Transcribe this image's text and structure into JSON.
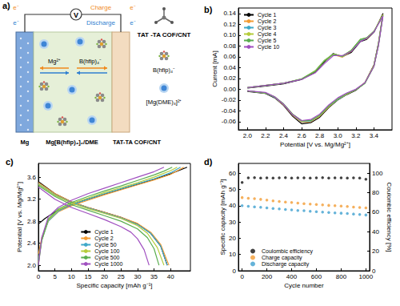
{
  "diagram": {
    "title": "a)",
    "charge": "Charge",
    "discharge": "Discharge",
    "electron": "e⁻",
    "voltmeter": "V",
    "ions": [
      "Mg²⁺",
      "B(hfip)₄⁻"
    ],
    "anode": "Mg",
    "electrolyte": "Mg[B(hfip)₄]₂/DME",
    "cathode": "TAT-TA COF/CNT",
    "key": [
      "TAT -TA COF/CNT",
      "B(hfip)₄⁻",
      "[Mg(DME)₃]²⁺"
    ]
  },
  "chart_data": [
    {
      "type": "line",
      "title": "b)",
      "x_label": "Potential [V vs. Mg/Mg²⁺]",
      "y_label": "Current [mA]",
      "xlim": [
        1.9,
        3.6
      ],
      "xticks": [
        {
          "value": 2.0,
          "label": "2.0"
        },
        2.2,
        2.4,
        2.6,
        2.8,
        {
          "value": 3.0,
          "label": "3.0"
        },
        3.2,
        3.4
      ],
      "ylim": [
        -0.075,
        0.15
      ],
      "yticks": [
        -0.06,
        -0.04,
        -0.02,
        {
          "value": 0,
          "label": "0.00"
        },
        0.02,
        0.04,
        0.06,
        0.08,
        {
          "value": 0.1,
          "label": "0.10"
        },
        0.12,
        0.14
      ],
      "grid": false,
      "legend": "upper left",
      "line_style": "solid",
      "x": [
        2.0,
        2.2,
        2.4,
        2.6,
        2.75,
        2.85,
        2.95,
        3.05,
        3.15,
        3.25,
        3.32,
        3.4,
        3.5,
        3.45,
        3.4,
        3.3,
        3.2,
        3.1,
        3.0,
        2.9,
        2.8,
        2.7,
        2.6,
        2.5,
        2.4,
        2.3,
        2.2,
        2.0
      ],
      "series": [
        {
          "name": "Cycle 1",
          "color": "#000000",
          "values": [
            0.002,
            0.006,
            0.01,
            0.018,
            0.032,
            0.05,
            0.066,
            0.06,
            0.068,
            0.088,
            0.092,
            0.105,
            0.14,
            0.085,
            0.045,
            0.012,
            -0.002,
            -0.01,
            -0.02,
            -0.034,
            -0.052,
            -0.062,
            -0.064,
            -0.05,
            -0.03,
            -0.016,
            -0.008,
            -0.004
          ]
        },
        {
          "name": "Cycle 2",
          "color": "#f39c34",
          "values": [
            0.003,
            0.007,
            0.011,
            0.019,
            0.033,
            0.052,
            0.064,
            0.059,
            0.07,
            0.09,
            0.093,
            0.106,
            0.138,
            0.083,
            0.044,
            0.012,
            -0.001,
            -0.009,
            -0.019,
            -0.033,
            -0.05,
            -0.06,
            -0.061,
            -0.048,
            -0.029,
            -0.015,
            -0.007,
            -0.003
          ]
        },
        {
          "name": "Cycle 3",
          "color": "#3fa9c9",
          "values": [
            0.003,
            0.007,
            0.011,
            0.019,
            0.034,
            0.053,
            0.065,
            0.06,
            0.071,
            0.091,
            0.094,
            0.106,
            0.137,
            0.082,
            0.043,
            0.011,
            -0.001,
            -0.009,
            -0.019,
            -0.032,
            -0.049,
            -0.059,
            -0.06,
            -0.047,
            -0.028,
            -0.015,
            -0.007,
            -0.003
          ]
        },
        {
          "name": "Cycle 4",
          "color": "#b5cc3a",
          "values": [
            0.003,
            0.007,
            0.011,
            0.019,
            0.034,
            0.053,
            0.065,
            0.061,
            0.072,
            0.092,
            0.095,
            0.107,
            0.137,
            0.082,
            0.043,
            0.011,
            -0.001,
            -0.009,
            -0.018,
            -0.032,
            -0.049,
            -0.058,
            -0.059,
            -0.046,
            -0.028,
            -0.014,
            -0.007,
            -0.003
          ]
        },
        {
          "name": "Cycle 5",
          "color": "#5aae4f",
          "values": [
            0.003,
            0.007,
            0.011,
            0.019,
            0.033,
            0.052,
            0.064,
            0.061,
            0.072,
            0.092,
            0.095,
            0.107,
            0.136,
            0.081,
            0.042,
            0.011,
            -0.001,
            -0.008,
            -0.018,
            -0.031,
            -0.048,
            -0.058,
            -0.058,
            -0.046,
            -0.027,
            -0.014,
            -0.007,
            -0.003
          ]
        },
        {
          "name": "Cycle 10",
          "color": "#a04fc0",
          "values": [
            0.003,
            0.007,
            0.011,
            0.018,
            0.03,
            0.047,
            0.062,
            0.062,
            0.07,
            0.088,
            0.094,
            0.106,
            0.135,
            0.08,
            0.042,
            0.012,
            0.0,
            -0.007,
            -0.016,
            -0.029,
            -0.046,
            -0.056,
            -0.058,
            -0.047,
            -0.028,
            -0.014,
            -0.006,
            -0.003
          ]
        }
      ]
    },
    {
      "type": "line",
      "title": "c)",
      "x_label": "Specific capacity [mAh g⁻¹]",
      "y_label": "Potential [V vs. Mg/Mg²⁺]",
      "xlim": [
        0,
        46
      ],
      "xticks": [
        0,
        5,
        10,
        15,
        20,
        25,
        30,
        35,
        40
      ],
      "ylim": [
        1.9,
        3.85
      ],
      "yticks": [
        {
          "value": 2.0,
          "label": "2.0"
        },
        2.4,
        2.8,
        3.2,
        3.6
      ],
      "grid": false,
      "legend": "lower center",
      "line_style": "solid",
      "series": [
        {
          "name": "Cycle 1",
          "color": "#000000",
          "x": [
            0,
            2,
            5,
            10,
            15,
            20,
            25,
            30,
            35,
            40,
            45,
            null,
            0,
            5,
            10,
            15,
            20,
            25,
            30,
            34,
            37,
            39
          ],
          "values": [
            2.75,
            2.85,
            2.97,
            3.1,
            3.2,
            3.29,
            3.38,
            3.47,
            3.56,
            3.66,
            3.78,
            null,
            3.52,
            3.3,
            3.15,
            3.05,
            2.96,
            2.87,
            2.75,
            2.58,
            2.35,
            2.0
          ]
        },
        {
          "name": "Cycle 2",
          "color": "#f39c34",
          "x": [
            0,
            1,
            3,
            6,
            10,
            15,
            20,
            25,
            30,
            35,
            40,
            44,
            null,
            0,
            5,
            10,
            15,
            20,
            25,
            30,
            34,
            37,
            39.5
          ],
          "values": [
            2.2,
            2.5,
            2.8,
            2.97,
            3.08,
            3.18,
            3.28,
            3.37,
            3.46,
            3.55,
            3.65,
            3.78,
            null,
            3.5,
            3.3,
            3.15,
            3.05,
            2.96,
            2.87,
            2.76,
            2.6,
            2.38,
            2.0
          ]
        },
        {
          "name": "Cycle 50",
          "color": "#3fa9c9",
          "x": [
            0,
            1,
            3,
            6,
            10,
            15,
            20,
            25,
            30,
            35,
            40,
            43,
            null,
            0,
            5,
            10,
            15,
            20,
            25,
            30,
            34,
            37,
            39
          ],
          "values": [
            2.1,
            2.45,
            2.8,
            2.98,
            3.1,
            3.2,
            3.3,
            3.39,
            3.48,
            3.57,
            3.68,
            3.78,
            null,
            3.48,
            3.28,
            3.14,
            3.04,
            2.95,
            2.86,
            2.74,
            2.58,
            2.35,
            2.0
          ]
        },
        {
          "name": "Cycle 100",
          "color": "#b5cc3a",
          "x": [
            0,
            1,
            3,
            6,
            10,
            15,
            20,
            25,
            30,
            35,
            40,
            42,
            null,
            0,
            5,
            10,
            15,
            20,
            25,
            30,
            33,
            36,
            38
          ],
          "values": [
            2.05,
            2.45,
            2.82,
            3.0,
            3.12,
            3.22,
            3.32,
            3.41,
            3.5,
            3.6,
            3.72,
            3.78,
            null,
            3.47,
            3.27,
            3.13,
            3.03,
            2.94,
            2.85,
            2.72,
            2.58,
            2.32,
            2.0
          ]
        },
        {
          "name": "Cycle 500",
          "color": "#5aae4f",
          "x": [
            0,
            1,
            3,
            6,
            10,
            15,
            20,
            25,
            30,
            35,
            38,
            40.5,
            null,
            0,
            5,
            10,
            15,
            20,
            25,
            30,
            33,
            35,
            36.5
          ],
          "values": [
            2.0,
            2.45,
            2.84,
            3.02,
            3.14,
            3.25,
            3.35,
            3.44,
            3.54,
            3.64,
            3.71,
            3.78,
            null,
            3.45,
            3.25,
            3.1,
            3.0,
            2.9,
            2.8,
            2.66,
            2.5,
            2.3,
            2.0
          ]
        },
        {
          "name": "Cycle 1000",
          "color": "#a04fc0",
          "x": [
            0,
            1,
            3,
            6,
            10,
            15,
            20,
            25,
            30,
            35,
            38,
            null,
            0,
            5,
            10,
            15,
            20,
            25,
            28,
            30,
            32,
            33.5
          ],
          "values": [
            2.0,
            2.5,
            2.88,
            3.05,
            3.18,
            3.3,
            3.4,
            3.5,
            3.6,
            3.7,
            3.78,
            null,
            3.42,
            3.2,
            3.05,
            2.94,
            2.83,
            2.7,
            2.6,
            2.48,
            2.28,
            2.0
          ]
        }
      ]
    },
    {
      "type": "scatter",
      "title": "d)",
      "x_label": "Cycle number",
      "y_label": "Specific capacity [mAh g⁻¹]",
      "y2_label": "Coulombic efficiency [%]",
      "xlim": [
        -30,
        1030
      ],
      "xticks": [
        0,
        200,
        400,
        600,
        800,
        1000
      ],
      "ylim": [
        0,
        66
      ],
      "yticks": [
        0,
        10,
        20,
        30,
        40,
        50,
        60
      ],
      "y2lim": [
        0,
        110
      ],
      "y2ticks": [
        0,
        20,
        40,
        60,
        80,
        100
      ],
      "grid": false,
      "legend": "lower left",
      "marker": "circle",
      "x": [
        0,
        50,
        100,
        150,
        200,
        250,
        300,
        350,
        400,
        450,
        500,
        550,
        600,
        650,
        700,
        750,
        800,
        850,
        900,
        950,
        1000
      ],
      "series": [
        {
          "name": "Coulombic efficiency",
          "color": "#111111",
          "axis": "y2",
          "values": [
            90.5,
            95.2,
            95.4,
            95.1,
            95.3,
            95.0,
            95.2,
            95.4,
            95.1,
            95.3,
            95.2,
            95.0,
            95.3,
            95.4,
            95.1,
            95.2,
            95.3,
            95.0,
            95.2,
            95.1,
            93.8
          ]
        },
        {
          "name": "Charge capacity",
          "color": "#f39c34",
          "values": [
            45.0,
            44.6,
            44.3,
            43.9,
            43.5,
            43.0,
            42.6,
            42.2,
            42.0,
            41.6,
            41.3,
            41.0,
            40.8,
            40.5,
            40.2,
            40.0,
            39.8,
            39.5,
            39.2,
            38.9,
            38.7
          ]
        },
        {
          "name": "Discharge capacity",
          "color": "#3fa0d0",
          "values": [
            40.0,
            39.6,
            39.3,
            39.0,
            38.7,
            38.3,
            38.0,
            37.7,
            37.4,
            37.1,
            36.9,
            36.6,
            36.3,
            36.1,
            35.8,
            35.6,
            35.4,
            35.2,
            34.9,
            34.6,
            34.3
          ]
        }
      ]
    }
  ]
}
